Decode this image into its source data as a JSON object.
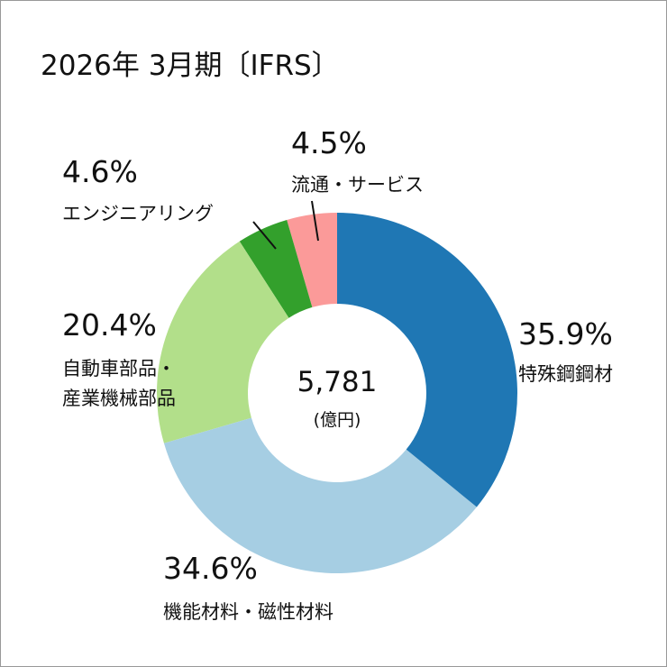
{
  "chart_data": {
    "type": "donut",
    "title": "2026年 3月期〔IFRS〕",
    "center_label": "5,781",
    "center_unit": "(億円)",
    "categories": [
      "特殊鋼鋼材",
      "機能材料・磁性材料",
      "自動車部品・\n産業機械部品",
      "エンジニアリング",
      "流通・サービス"
    ],
    "values": [
      35.9,
      34.6,
      20.4,
      4.6,
      4.5
    ],
    "value_labels": [
      "35.9%",
      "34.6%",
      "20.4%",
      "4.6%",
      "4.5%"
    ],
    "colors": [
      "#1f77b4",
      "#a6cee3",
      "#b2df8a",
      "#33a02c",
      "#fb9a99"
    ]
  }
}
